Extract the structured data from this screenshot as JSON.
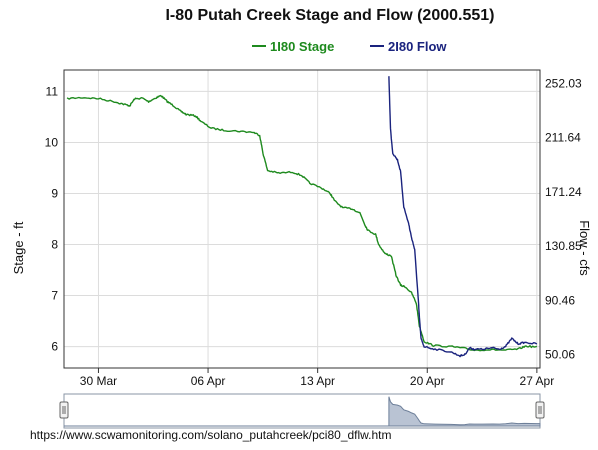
{
  "source_url": "https://www.scwamonitoring.com/solano_putahcreek/pci80_dflw.htm",
  "chart_data": {
    "type": "line",
    "title": "I-80 Putah Creek Stage and Flow (2000.551)",
    "x_tick_labels": [
      "30 Mar",
      "06 Apr",
      "13 Apr",
      "20 Apr",
      "27 Apr"
    ],
    "x_tick_days": [
      0,
      7,
      14,
      21,
      28
    ],
    "x_range_days": [
      -2.2,
      28.2
    ],
    "y_left": {
      "label": "Stage - ft",
      "ticks": [
        6,
        7,
        8,
        9,
        10,
        11
      ],
      "range": [
        5.58,
        11.42
      ]
    },
    "y_right": {
      "label": "Flow - cfs",
      "ticks": [
        "50.06",
        "90.46",
        "130.85",
        "171.24",
        "211.64",
        "252.03"
      ],
      "range": [
        40.0,
        262.0
      ]
    },
    "grid": true,
    "legend_placement": "top-center",
    "series": [
      {
        "name": "1I80 Stage",
        "axis": "left",
        "color": "#1e8a1e",
        "points": [
          [
            -2.0,
            10.86
          ],
          [
            -1.0,
            10.88
          ],
          [
            0.0,
            10.86
          ],
          [
            1.0,
            10.8
          ],
          [
            1.6,
            10.75
          ],
          [
            2.0,
            10.72
          ],
          [
            2.3,
            10.85
          ],
          [
            2.8,
            10.87
          ],
          [
            3.2,
            10.8
          ],
          [
            3.7,
            10.88
          ],
          [
            4.0,
            10.92
          ],
          [
            4.4,
            10.8
          ],
          [
            4.8,
            10.72
          ],
          [
            5.2,
            10.62
          ],
          [
            5.6,
            10.55
          ],
          [
            6.2,
            10.52
          ],
          [
            6.6,
            10.4
          ],
          [
            7.2,
            10.28
          ],
          [
            8.0,
            10.24
          ],
          [
            9.0,
            10.22
          ],
          [
            9.9,
            10.2
          ],
          [
            10.3,
            10.14
          ],
          [
            10.5,
            9.8
          ],
          [
            10.8,
            9.45
          ],
          [
            11.5,
            9.4
          ],
          [
            12.4,
            9.42
          ],
          [
            13.0,
            9.35
          ],
          [
            13.5,
            9.2
          ],
          [
            14.3,
            9.1
          ],
          [
            14.8,
            9.0
          ],
          [
            15.1,
            8.85
          ],
          [
            15.6,
            8.72
          ],
          [
            16.2,
            8.7
          ],
          [
            16.7,
            8.62
          ],
          [
            17.0,
            8.4
          ],
          [
            17.2,
            8.28
          ],
          [
            17.7,
            8.2
          ],
          [
            17.9,
            8.0
          ],
          [
            18.3,
            7.82
          ],
          [
            18.7,
            7.78
          ],
          [
            19.0,
            7.4
          ],
          [
            19.3,
            7.2
          ],
          [
            19.6,
            7.17
          ],
          [
            20.0,
            7.05
          ],
          [
            20.3,
            6.85
          ],
          [
            20.5,
            6.4
          ],
          [
            20.8,
            6.1
          ],
          [
            21.4,
            6.02
          ],
          [
            22.5,
            6.0
          ],
          [
            23.3,
            5.97
          ],
          [
            24.0,
            5.93
          ],
          [
            25.0,
            5.94
          ],
          [
            26.0,
            5.93
          ],
          [
            26.8,
            5.95
          ],
          [
            27.3,
            6.01
          ],
          [
            28.0,
            5.99
          ]
        ]
      },
      {
        "name": "2I80 Flow",
        "axis": "right",
        "color": "#1a237e",
        "points": [
          [
            18.55,
            257.0
          ],
          [
            18.65,
            218.0
          ],
          [
            18.8,
            200.0
          ],
          [
            19.1,
            195.0
          ],
          [
            19.3,
            186.0
          ],
          [
            19.5,
            160.0
          ],
          [
            19.8,
            148.0
          ],
          [
            20.0,
            137.0
          ],
          [
            20.2,
            128.0
          ],
          [
            20.4,
            95.0
          ],
          [
            20.5,
            78.0
          ],
          [
            20.6,
            62.0
          ],
          [
            20.8,
            56.0
          ],
          [
            21.5,
            54.0
          ],
          [
            22.5,
            52.0
          ],
          [
            23.1,
            49.0
          ],
          [
            23.4,
            50.0
          ],
          [
            23.7,
            55.0
          ],
          [
            24.0,
            54.0
          ],
          [
            24.5,
            54.0
          ],
          [
            25.2,
            55.0
          ],
          [
            25.6,
            54.0
          ],
          [
            26.0,
            56.0
          ],
          [
            26.4,
            62.0
          ],
          [
            26.8,
            58.0
          ],
          [
            27.2,
            59.0
          ],
          [
            28.0,
            58.0
          ]
        ]
      }
    ]
  }
}
